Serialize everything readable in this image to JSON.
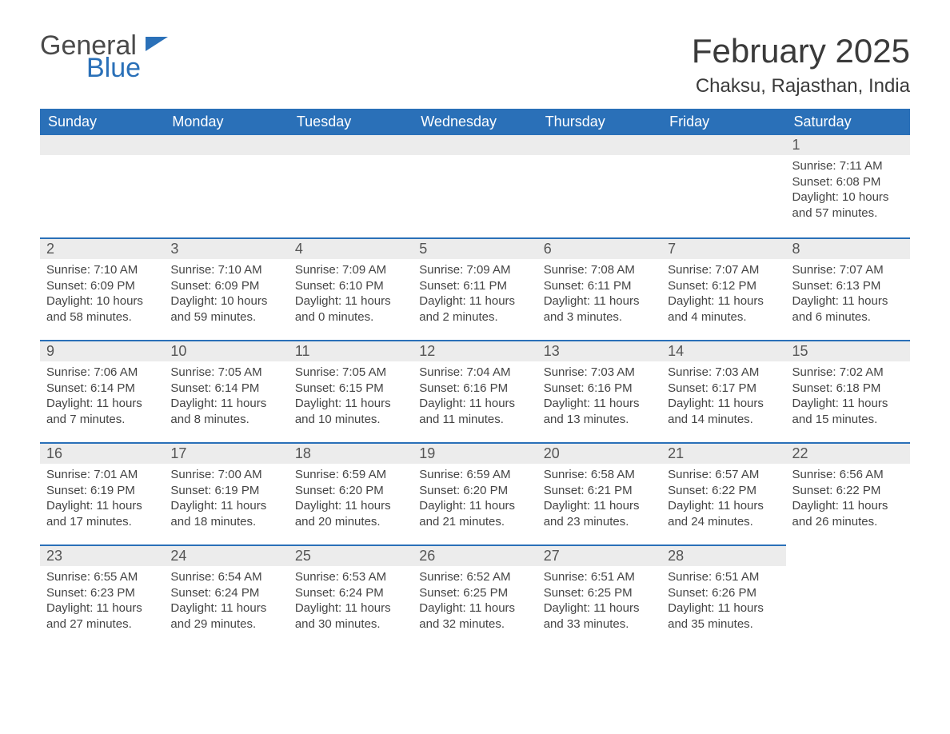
{
  "logo": {
    "line1": "General",
    "line2": "Blue"
  },
  "title": "February 2025",
  "location": "Chaksu, Rajasthan, India",
  "day_headers": [
    "Sunday",
    "Monday",
    "Tuesday",
    "Wednesday",
    "Thursday",
    "Friday",
    "Saturday"
  ],
  "colors": {
    "header_bg": "#2a70b8",
    "header_text": "#ffffff",
    "bar_bg": "#ececec",
    "bar_border": "#2a70b8",
    "body_text": "#444444",
    "title_text": "#3a3a3a"
  },
  "first_weekday_index": 6,
  "days": [
    {
      "n": 1,
      "sunrise": "7:11 AM",
      "sunset": "6:08 PM",
      "daylight": "10 hours and 57 minutes."
    },
    {
      "n": 2,
      "sunrise": "7:10 AM",
      "sunset": "6:09 PM",
      "daylight": "10 hours and 58 minutes."
    },
    {
      "n": 3,
      "sunrise": "7:10 AM",
      "sunset": "6:09 PM",
      "daylight": "10 hours and 59 minutes."
    },
    {
      "n": 4,
      "sunrise": "7:09 AM",
      "sunset": "6:10 PM",
      "daylight": "11 hours and 0 minutes."
    },
    {
      "n": 5,
      "sunrise": "7:09 AM",
      "sunset": "6:11 PM",
      "daylight": "11 hours and 2 minutes."
    },
    {
      "n": 6,
      "sunrise": "7:08 AM",
      "sunset": "6:11 PM",
      "daylight": "11 hours and 3 minutes."
    },
    {
      "n": 7,
      "sunrise": "7:07 AM",
      "sunset": "6:12 PM",
      "daylight": "11 hours and 4 minutes."
    },
    {
      "n": 8,
      "sunrise": "7:07 AM",
      "sunset": "6:13 PM",
      "daylight": "11 hours and 6 minutes."
    },
    {
      "n": 9,
      "sunrise": "7:06 AM",
      "sunset": "6:14 PM",
      "daylight": "11 hours and 7 minutes."
    },
    {
      "n": 10,
      "sunrise": "7:05 AM",
      "sunset": "6:14 PM",
      "daylight": "11 hours and 8 minutes."
    },
    {
      "n": 11,
      "sunrise": "7:05 AM",
      "sunset": "6:15 PM",
      "daylight": "11 hours and 10 minutes."
    },
    {
      "n": 12,
      "sunrise": "7:04 AM",
      "sunset": "6:16 PM",
      "daylight": "11 hours and 11 minutes."
    },
    {
      "n": 13,
      "sunrise": "7:03 AM",
      "sunset": "6:16 PM",
      "daylight": "11 hours and 13 minutes."
    },
    {
      "n": 14,
      "sunrise": "7:03 AM",
      "sunset": "6:17 PM",
      "daylight": "11 hours and 14 minutes."
    },
    {
      "n": 15,
      "sunrise": "7:02 AM",
      "sunset": "6:18 PM",
      "daylight": "11 hours and 15 minutes."
    },
    {
      "n": 16,
      "sunrise": "7:01 AM",
      "sunset": "6:19 PM",
      "daylight": "11 hours and 17 minutes."
    },
    {
      "n": 17,
      "sunrise": "7:00 AM",
      "sunset": "6:19 PM",
      "daylight": "11 hours and 18 minutes."
    },
    {
      "n": 18,
      "sunrise": "6:59 AM",
      "sunset": "6:20 PM",
      "daylight": "11 hours and 20 minutes."
    },
    {
      "n": 19,
      "sunrise": "6:59 AM",
      "sunset": "6:20 PM",
      "daylight": "11 hours and 21 minutes."
    },
    {
      "n": 20,
      "sunrise": "6:58 AM",
      "sunset": "6:21 PM",
      "daylight": "11 hours and 23 minutes."
    },
    {
      "n": 21,
      "sunrise": "6:57 AM",
      "sunset": "6:22 PM",
      "daylight": "11 hours and 24 minutes."
    },
    {
      "n": 22,
      "sunrise": "6:56 AM",
      "sunset": "6:22 PM",
      "daylight": "11 hours and 26 minutes."
    },
    {
      "n": 23,
      "sunrise": "6:55 AM",
      "sunset": "6:23 PM",
      "daylight": "11 hours and 27 minutes."
    },
    {
      "n": 24,
      "sunrise": "6:54 AM",
      "sunset": "6:24 PM",
      "daylight": "11 hours and 29 minutes."
    },
    {
      "n": 25,
      "sunrise": "6:53 AM",
      "sunset": "6:24 PM",
      "daylight": "11 hours and 30 minutes."
    },
    {
      "n": 26,
      "sunrise": "6:52 AM",
      "sunset": "6:25 PM",
      "daylight": "11 hours and 32 minutes."
    },
    {
      "n": 27,
      "sunrise": "6:51 AM",
      "sunset": "6:25 PM",
      "daylight": "11 hours and 33 minutes."
    },
    {
      "n": 28,
      "sunrise": "6:51 AM",
      "sunset": "6:26 PM",
      "daylight": "11 hours and 35 minutes."
    }
  ],
  "labels": {
    "sunrise": "Sunrise:",
    "sunset": "Sunset:",
    "daylight": "Daylight:"
  }
}
